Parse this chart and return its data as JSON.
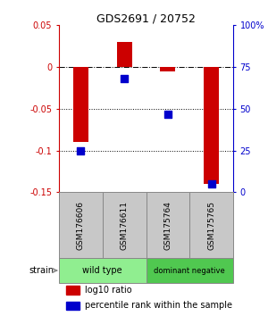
{
  "title": "GDS2691 / 20752",
  "samples": [
    "GSM176606",
    "GSM176611",
    "GSM175764",
    "GSM175765"
  ],
  "log10_ratio": [
    -0.09,
    0.03,
    -0.005,
    -0.14
  ],
  "percentile_rank": [
    25,
    68,
    47,
    5
  ],
  "ylim_left": [
    -0.15,
    0.05
  ],
  "ylim_right": [
    0,
    100
  ],
  "yticks_left": [
    -0.15,
    -0.1,
    -0.05,
    0,
    0.05
  ],
  "yticks_right": [
    0,
    25,
    50,
    75,
    100
  ],
  "ytick_labels_left": [
    "-0.15",
    "-0.1",
    "-0.05",
    "0",
    "0.05"
  ],
  "ytick_labels_right": [
    "0",
    "25",
    "50",
    "75",
    "100%"
  ],
  "hlines": [
    0.0,
    -0.05,
    -0.1
  ],
  "hline_styles": [
    "dashdot",
    "dotted",
    "dotted"
  ],
  "strain_groups": [
    {
      "label": "wild type",
      "samples": [
        0,
        1
      ],
      "color": "#90ee90"
    },
    {
      "label": "dominant negative",
      "samples": [
        2,
        3
      ],
      "color": "#50c850"
    }
  ],
  "bar_color": "#cc0000",
  "dot_color": "#0000cc",
  "bar_width": 0.35,
  "dot_size": 30,
  "left_axis_color": "#cc0000",
  "right_axis_color": "#0000cc",
  "background_color": "#ffffff",
  "plot_bg_color": "#ffffff",
  "gsm_box_color": "#c8c8c8",
  "legend_bar_label": "log10 ratio",
  "legend_dot_label": "percentile rank within the sample",
  "strain_label": "strain"
}
